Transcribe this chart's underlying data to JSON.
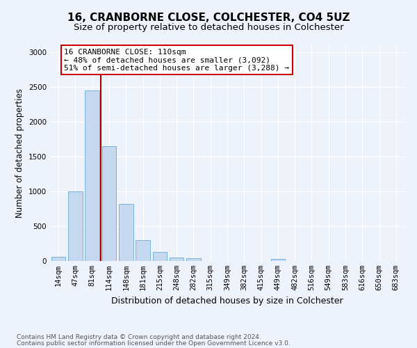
{
  "title1": "16, CRANBORNE CLOSE, COLCHESTER, CO4 5UZ",
  "title2": "Size of property relative to detached houses in Colchester",
  "xlabel": "Distribution of detached houses by size in Colchester",
  "ylabel": "Number of detached properties",
  "categories": [
    "14sqm",
    "47sqm",
    "81sqm",
    "114sqm",
    "148sqm",
    "181sqm",
    "215sqm",
    "248sqm",
    "282sqm",
    "315sqm",
    "349sqm",
    "382sqm",
    "415sqm",
    "449sqm",
    "482sqm",
    "516sqm",
    "549sqm",
    "583sqm",
    "616sqm",
    "650sqm",
    "683sqm"
  ],
  "values": [
    60,
    1000,
    2450,
    1650,
    820,
    305,
    130,
    50,
    45,
    0,
    0,
    0,
    0,
    30,
    0,
    0,
    0,
    0,
    0,
    0,
    0
  ],
  "bar_color": "#c5d8f0",
  "bar_edge_color": "#6aaad4",
  "vline_color": "#aa0000",
  "annotation_line1": "16 CRANBORNE CLOSE: 110sqm",
  "annotation_line2": "← 48% of detached houses are smaller (3,092)",
  "annotation_line3": "51% of semi-detached houses are larger (3,288) →",
  "annotation_box_color": "white",
  "annotation_box_edge": "#cc0000",
  "ylim": [
    0,
    3100
  ],
  "yticks": [
    0,
    500,
    1000,
    1500,
    2000,
    2500,
    3000
  ],
  "background_color": "#eef2fb",
  "grid_color": "#ffffff",
  "footer1": "Contains HM Land Registry data © Crown copyright and database right 2024.",
  "footer2": "Contains public sector information licensed under the Open Government Licence v3.0.",
  "title1_fontsize": 11,
  "title2_fontsize": 9.5,
  "xlabel_fontsize": 9,
  "ylabel_fontsize": 8.5,
  "tick_fontsize": 7.5,
  "annotation_fontsize": 8,
  "footer_fontsize": 6.5
}
